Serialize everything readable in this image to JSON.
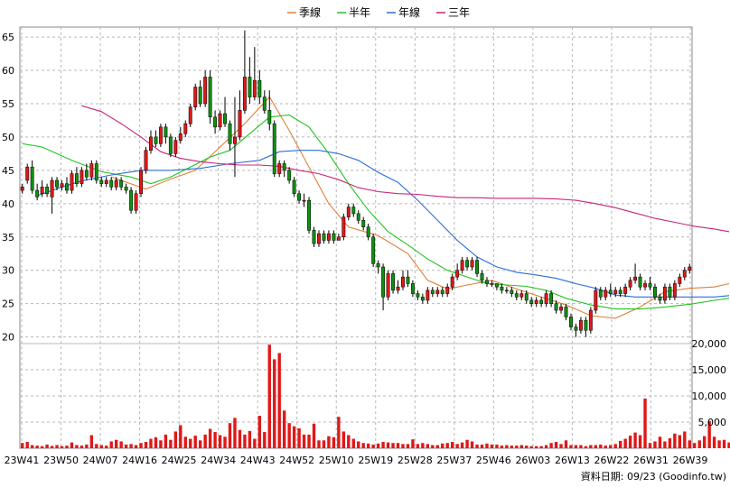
{
  "chart_data": {
    "type": "candlestick",
    "legend": [
      {
        "label": "季線",
        "color": "#e0803a"
      },
      {
        "label": "半年",
        "color": "#22c322"
      },
      {
        "label": "年線",
        "color": "#2a6ed6"
      },
      {
        "label": "三年",
        "color": "#c8247a"
      }
    ],
    "price_axis": {
      "ylim": [
        19,
        66.5
      ],
      "ticks": [
        20,
        25,
        30,
        35,
        40,
        45,
        50,
        55,
        60,
        65
      ]
    },
    "volume_axis": {
      "ylim": [
        0,
        20000
      ],
      "ticks": [
        5000,
        10000,
        15000,
        20000
      ],
      "tick_labels": [
        "5,000",
        "10,000",
        "15,000",
        "20,000"
      ]
    },
    "x_labels": [
      "23W41",
      "23W50",
      "24W07",
      "24W16",
      "24W25",
      "24W34",
      "24W43",
      "24W52",
      "25W10",
      "25W19",
      "25W28",
      "25W37",
      "25W46",
      "26W03",
      "26W13",
      "26W22",
      "26W31",
      "26W39"
    ],
    "footer": "資料日期: 09/23   (Goodinfo.tw)",
    "candles": [
      [
        42,
        42.5,
        43,
        41.5
      ],
      [
        43.5,
        45.5,
        46,
        43
      ],
      [
        45.5,
        42,
        46.5,
        41.5
      ],
      [
        42,
        41,
        43,
        40.5
      ],
      [
        41.5,
        42.5,
        43.5,
        41
      ],
      [
        42.5,
        41.5,
        43,
        41
      ],
      [
        41,
        43.5,
        44,
        38.5
      ],
      [
        43.5,
        42.5,
        44,
        42
      ],
      [
        42.5,
        43,
        43.5,
        42
      ],
      [
        43,
        42,
        44,
        41.5
      ],
      [
        42,
        44.5,
        45,
        41.5
      ],
      [
        44.5,
        43,
        45.5,
        42.5
      ],
      [
        43,
        45,
        45.5,
        42.5
      ],
      [
        45,
        44,
        46,
        43.5
      ],
      [
        44,
        46,
        46.5,
        43.5
      ],
      [
        46,
        43.5,
        46.5,
        43
      ],
      [
        43.5,
        43,
        44,
        42.5
      ],
      [
        43,
        43.5,
        44,
        42.5
      ],
      [
        43.5,
        42.5,
        44,
        42
      ],
      [
        42.5,
        43.5,
        44,
        42
      ],
      [
        43.5,
        42.5,
        44,
        42
      ],
      [
        42.5,
        42,
        43,
        41.5
      ],
      [
        42,
        39,
        42.5,
        38.5
      ],
      [
        39,
        41.5,
        42,
        38.5
      ],
      [
        41.5,
        45,
        45.5,
        41
      ],
      [
        45,
        48,
        48.5,
        44.5
      ],
      [
        48,
        50,
        51,
        47.5
      ],
      [
        50,
        49,
        51,
        48.5
      ],
      [
        49,
        51.5,
        52,
        48.5
      ],
      [
        51.5,
        50,
        52,
        49
      ],
      [
        50,
        47.5,
        50.5,
        47
      ],
      [
        47.5,
        49.5,
        50,
        47
      ],
      [
        49.5,
        50.5,
        51.5,
        49
      ],
      [
        50.5,
        52,
        52.5,
        50
      ],
      [
        52,
        54.5,
        55,
        51.5
      ],
      [
        54.5,
        57.5,
        58,
        54
      ],
      [
        57.5,
        55,
        58.5,
        54.5
      ],
      [
        55,
        59,
        60,
        54.5
      ],
      [
        59,
        53,
        60,
        52
      ],
      [
        53,
        51.5,
        54,
        50.5
      ],
      [
        51.5,
        53.5,
        54,
        51
      ],
      [
        53.5,
        52,
        56,
        51.5
      ],
      [
        52,
        49,
        52.5,
        48
      ],
      [
        49,
        50,
        56,
        44
      ],
      [
        50,
        54,
        57,
        49.5
      ],
      [
        54,
        59,
        66,
        53.5
      ],
      [
        59,
        56,
        62,
        55
      ],
      [
        56,
        58.5,
        63.5,
        55.5
      ],
      [
        58.5,
        56,
        60,
        55
      ],
      [
        56,
        54,
        57,
        53.5
      ],
      [
        54,
        52,
        57,
        51
      ],
      [
        52,
        44.5,
        52.5,
        44
      ],
      [
        44.5,
        46,
        46.5,
        44
      ],
      [
        46,
        45,
        46.5,
        44
      ],
      [
        45,
        43.5,
        45.5,
        43
      ],
      [
        43.5,
        41.5,
        44,
        41
      ],
      [
        41.5,
        40.5,
        42,
        40
      ],
      [
        40.5,
        40.5,
        41.5,
        39.5
      ],
      [
        40.5,
        36,
        41,
        35.5
      ],
      [
        36,
        34,
        36.5,
        33.5
      ],
      [
        34,
        35.5,
        36,
        33.5
      ],
      [
        35.5,
        34.5,
        36,
        34
      ],
      [
        34.5,
        35.5,
        36,
        34
      ],
      [
        35.5,
        34.5,
        36,
        34
      ],
      [
        34.5,
        35,
        35.5,
        34.5
      ],
      [
        35,
        38,
        38.5,
        34.5
      ],
      [
        38,
        39.5,
        40,
        37.5
      ],
      [
        39.5,
        38.5,
        40,
        38
      ],
      [
        38.5,
        37.5,
        39,
        37
      ],
      [
        37.5,
        36.5,
        38,
        36
      ],
      [
        36.5,
        35,
        37,
        34.5
      ],
      [
        35,
        31,
        35.5,
        30.5
      ],
      [
        31,
        30.5,
        31.5,
        29.5
      ],
      [
        30.5,
        26,
        31,
        24
      ],
      [
        26,
        29.5,
        30,
        25.5
      ],
      [
        29.5,
        27,
        30,
        26.5
      ],
      [
        27,
        27.5,
        28.5,
        26.5
      ],
      [
        27.5,
        29,
        30,
        27
      ],
      [
        29,
        28,
        30,
        27.5
      ],
      [
        28,
        26.5,
        28.5,
        26
      ],
      [
        26.5,
        26,
        27,
        25.5
      ],
      [
        26,
        25.5,
        26.5,
        25
      ],
      [
        25.5,
        27,
        27.5,
        25
      ],
      [
        27,
        26.5,
        27.5,
        26
      ],
      [
        26.5,
        27,
        27.5,
        26
      ],
      [
        27,
        26.5,
        27.5,
        26
      ],
      [
        26.5,
        27.5,
        28,
        26
      ],
      [
        27.5,
        29,
        29.5,
        27
      ],
      [
        29,
        30,
        31,
        28.5
      ],
      [
        30,
        31.5,
        32,
        29.5
      ],
      [
        31.5,
        30.5,
        32,
        30
      ],
      [
        30.5,
        31.5,
        32,
        30
      ],
      [
        31.5,
        29.5,
        32,
        29
      ],
      [
        29.5,
        28.5,
        30,
        28
      ],
      [
        28.5,
        28,
        29,
        27.5
      ],
      [
        28,
        28,
        28.5,
        27.5
      ],
      [
        28,
        27.5,
        28,
        27
      ],
      [
        27.5,
        27,
        28,
        26.5
      ],
      [
        27,
        27,
        27.5,
        26.5
      ],
      [
        27,
        26.5,
        27.5,
        26
      ],
      [
        26.5,
        26,
        27,
        25.5
      ],
      [
        26,
        26.5,
        27,
        25.5
      ],
      [
        26.5,
        25.5,
        27,
        25
      ],
      [
        25.5,
        25,
        26,
        24.5
      ],
      [
        25,
        25.5,
        26,
        24.5
      ],
      [
        25.5,
        25,
        26,
        24.5
      ],
      [
        25,
        26.5,
        27,
        24.5
      ],
      [
        26.5,
        25,
        27,
        24.5
      ],
      [
        25,
        24,
        25.5,
        23.5
      ],
      [
        24,
        24.5,
        25,
        23.5
      ],
      [
        24.5,
        23,
        25,
        22.5
      ],
      [
        23,
        21.5,
        23.5,
        21
      ],
      [
        21.5,
        21,
        22,
        20
      ],
      [
        21,
        22.5,
        23,
        20.5
      ],
      [
        22.5,
        21,
        23,
        20
      ],
      [
        21,
        24,
        24.5,
        20.5
      ],
      [
        24,
        27,
        27.5,
        23.5
      ],
      [
        27,
        26,
        27.5,
        25.5
      ],
      [
        26,
        27,
        27.5,
        25.5
      ],
      [
        27,
        26.5,
        28,
        26
      ],
      [
        26.5,
        27,
        27.5,
        26
      ],
      [
        27,
        26.5,
        27.5,
        26
      ],
      [
        26.5,
        27.5,
        28,
        26
      ],
      [
        27.5,
        28.5,
        29,
        27
      ],
      [
        28.5,
        29,
        31,
        28
      ],
      [
        29,
        27.5,
        29.5,
        27
      ],
      [
        27.5,
        28,
        28.5,
        27
      ],
      [
        28,
        27.5,
        29,
        27
      ],
      [
        27.5,
        26,
        28,
        25.5
      ],
      [
        26,
        25.5,
        26.5,
        25
      ],
      [
        25.5,
        27.5,
        28,
        25
      ],
      [
        27.5,
        26,
        28,
        25.5
      ],
      [
        26,
        28,
        28.5,
        25.5
      ],
      [
        28,
        29,
        29.5,
        27.5
      ],
      [
        29,
        30,
        30.5,
        28.5
      ],
      [
        30,
        30.5,
        31,
        29.5
      ]
    ],
    "volumes": [
      1000,
      1200,
      600,
      500,
      400,
      700,
      450,
      600,
      400,
      500,
      1100,
      600,
      500,
      700,
      2500,
      800,
      600,
      500,
      1300,
      1600,
      1300,
      700,
      800,
      600,
      1000,
      1200,
      1800,
      2100,
      1500,
      2600,
      1600,
      3200,
      4400,
      2200,
      1800,
      2400,
      1500,
      2600,
      3700,
      3100,
      2500,
      2200,
      4800,
      5800,
      3500,
      2600,
      3300,
      1800,
      6200,
      3100,
      19800,
      17000,
      18200,
      7200,
      4800,
      4200,
      3800,
      2600,
      2600,
      4700,
      1500,
      1500,
      2300,
      2100,
      6000,
      3200,
      2500,
      1800,
      1300,
      1000,
      900,
      700,
      900,
      1200,
      1100,
      1000,
      1000,
      800,
      800,
      1700,
      800,
      1000,
      800,
      600,
      600,
      900,
      1000,
      1200,
      800,
      1100,
      1600,
      1300,
      700,
      700,
      900,
      700,
      700,
      500,
      600,
      500,
      500,
      600,
      500,
      400,
      400,
      400,
      600,
      1000,
      1200,
      800,
      1500,
      600,
      600,
      600,
      400,
      600,
      600,
      700,
      500,
      600,
      800,
      1400,
      1800,
      2400,
      3000,
      2500,
      9500,
      1000,
      1300,
      2200,
      1300,
      1900,
      2800,
      2500,
      3200,
      1500,
      1000,
      1500,
      2300,
      5200,
      2200,
      1500,
      1600,
      1100,
      900,
      1300,
      1400,
      1200,
      1200,
      1300,
      1500,
      1300
    ],
    "ma": {
      "季線": [
        [
          18,
          44.0
        ],
        [
          25,
          42.2
        ],
        [
          30,
          43.7
        ],
        [
          35,
          45.0
        ],
        [
          40,
          48.5
        ],
        [
          45,
          52.0
        ],
        [
          50,
          56.0
        ],
        [
          54,
          51.0
        ],
        [
          58,
          45.5
        ],
        [
          62,
          40.0
        ],
        [
          66,
          36.5
        ],
        [
          72,
          35.2
        ],
        [
          78,
          32.5
        ],
        [
          82,
          28.5
        ],
        [
          86,
          27.2
        ],
        [
          90,
          27.8
        ],
        [
          95,
          28.5
        ],
        [
          100,
          27.2
        ],
        [
          105,
          26.0
        ],
        [
          110,
          24.8
        ],
        [
          115,
          23.2
        ],
        [
          120,
          22.8
        ],
        [
          125,
          24.5
        ],
        [
          130,
          26.8
        ],
        [
          135,
          27.3
        ],
        [
          140,
          27.5
        ],
        [
          143,
          28.0
        ]
      ],
      "半年": [
        [
          0,
          49.0
        ],
        [
          4,
          48.5
        ],
        [
          10,
          46.5
        ],
        [
          16,
          44.8
        ],
        [
          22,
          44.0
        ],
        [
          26,
          43.0
        ],
        [
          30,
          44.0
        ],
        [
          34,
          45.5
        ],
        [
          38,
          47.0
        ],
        [
          42,
          48.0
        ],
        [
          46,
          50.5
        ],
        [
          50,
          53.0
        ],
        [
          54,
          53.3
        ],
        [
          58,
          51.5
        ],
        [
          62,
          47.5
        ],
        [
          66,
          43.0
        ],
        [
          70,
          39.0
        ],
        [
          74,
          35.8
        ],
        [
          78,
          33.8
        ],
        [
          82,
          31.7
        ],
        [
          86,
          30.0
        ],
        [
          90,
          29.0
        ],
        [
          94,
          28.0
        ],
        [
          98,
          27.8
        ],
        [
          102,
          27.6
        ],
        [
          106,
          27.0
        ],
        [
          110,
          25.8
        ],
        [
          115,
          24.8
        ],
        [
          120,
          24.2
        ],
        [
          125,
          24.2
        ],
        [
          130,
          24.5
        ],
        [
          135,
          24.9
        ],
        [
          140,
          25.5
        ],
        [
          143,
          25.8
        ]
      ],
      "年線": [
        [
          3,
          41.2
        ],
        [
          8,
          42.5
        ],
        [
          12,
          43.4
        ],
        [
          18,
          44.3
        ],
        [
          24,
          45.0
        ],
        [
          30,
          45.0
        ],
        [
          36,
          45.3
        ],
        [
          42,
          46.0
        ],
        [
          48,
          46.5
        ],
        [
          52,
          47.8
        ],
        [
          56,
          48.0
        ],
        [
          60,
          48.0
        ],
        [
          64,
          47.5
        ],
        [
          68,
          46.5
        ],
        [
          72,
          44.7
        ],
        [
          76,
          43.2
        ],
        [
          80,
          40.5
        ],
        [
          84,
          37.5
        ],
        [
          88,
          34.5
        ],
        [
          92,
          32.0
        ],
        [
          96,
          30.5
        ],
        [
          100,
          29.7
        ],
        [
          104,
          29.3
        ],
        [
          108,
          28.8
        ],
        [
          112,
          28.0
        ],
        [
          116,
          27.3
        ],
        [
          120,
          26.3
        ],
        [
          124,
          26.0
        ],
        [
          128,
          26.0
        ],
        [
          132,
          26.0
        ],
        [
          136,
          26.0
        ],
        [
          140,
          26.0
        ],
        [
          143,
          26.2
        ]
      ],
      "三年": [
        [
          12,
          54.7
        ],
        [
          16,
          53.8
        ],
        [
          20,
          52.0
        ],
        [
          24,
          50.0
        ],
        [
          28,
          47.8
        ],
        [
          32,
          46.8
        ],
        [
          36,
          46.3
        ],
        [
          40,
          46.0
        ],
        [
          44,
          45.8
        ],
        [
          48,
          45.8
        ],
        [
          52,
          45.6
        ],
        [
          56,
          45.0
        ],
        [
          60,
          44.5
        ],
        [
          64,
          43.6
        ],
        [
          68,
          42.4
        ],
        [
          72,
          41.8
        ],
        [
          76,
          41.5
        ],
        [
          80,
          41.4
        ],
        [
          84,
          41.1
        ],
        [
          88,
          40.9
        ],
        [
          92,
          40.9
        ],
        [
          96,
          40.8
        ],
        [
          100,
          40.8
        ],
        [
          104,
          40.8
        ],
        [
          108,
          40.7
        ],
        [
          112,
          40.5
        ],
        [
          116,
          40.0
        ],
        [
          120,
          39.4
        ],
        [
          124,
          38.6
        ],
        [
          128,
          37.8
        ],
        [
          132,
          37.2
        ],
        [
          136,
          36.6
        ],
        [
          140,
          36.2
        ],
        [
          143,
          35.8
        ]
      ]
    }
  }
}
